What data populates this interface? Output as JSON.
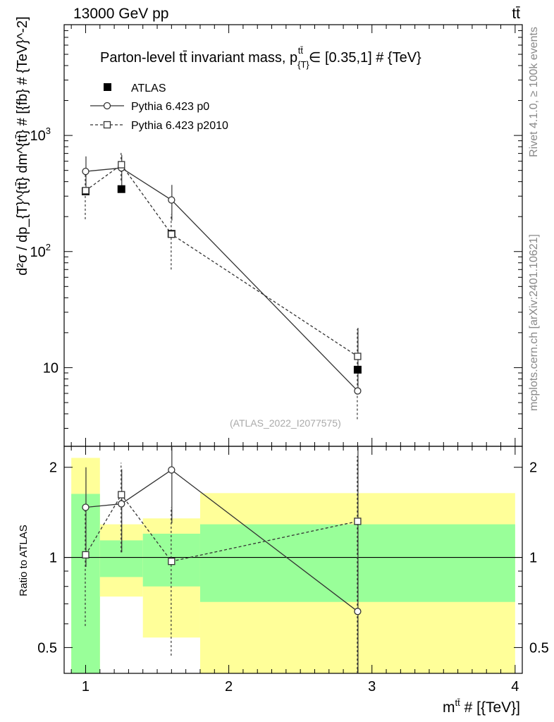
{
  "header": {
    "energy_label": "13000 GeV pp",
    "process_label": "tt̄"
  },
  "side_labels": {
    "rivet": "Rivet 4.1.0, ≥ 100k events",
    "mcplots": "mcplots.cern.ch [arXiv:2401.10621]"
  },
  "colors": {
    "band_stat": "#99ff99",
    "band_total": "#ffff99",
    "data": "#000000",
    "mc": "#333333"
  },
  "chart_data": [
    {
      "type": "scatter",
      "title": "Parton-level tt̄ invariant mass, p_{T}^{tt̄} ∈ [0.35,1] # {TeV}",
      "title_main": "Parton-level tt̄ invariant mass, p",
      "title_sub": "{T}",
      "title_sup": "tt̄",
      "title_tail": "∈ [0.35,1] # {TeV}",
      "ylabel": "d²σ / dp_{T}^{tt̄} dm^{tt̄} # [{fb} # {TeV}^-2]",
      "y_scale": "log",
      "ylim": [
        2.1,
        9000
      ],
      "xlim": [
        0.85,
        4.05
      ],
      "y_ticks": [
        {
          "value": 10,
          "base": "10",
          "exp": ""
        },
        {
          "value": 100,
          "base": "10",
          "exp": "2"
        },
        {
          "value": 1000,
          "base": "10",
          "exp": "3"
        }
      ],
      "analysis_tag": "(ATLAS_2022_I2077575)",
      "legend": [
        {
          "name": "ATLAS",
          "marker": "filled-square",
          "line": "none"
        },
        {
          "name": "Pythia 6.423 p0",
          "marker": "open-circle",
          "line": "solid"
        },
        {
          "name": "Pythia 6.423 p2010",
          "marker": "open-square",
          "line": "dashed"
        }
      ],
      "bins": [
        {
          "lo": 0.9,
          "hi": 1.1
        },
        {
          "lo": 1.1,
          "hi": 1.4
        },
        {
          "lo": 1.4,
          "hi": 1.8
        },
        {
          "lo": 1.8,
          "hi": 4.0
        }
      ],
      "series": [
        {
          "name": "ATLAS",
          "x": [
            1.0,
            1.25,
            1.6,
            2.9
          ],
          "y": [
            330,
            345,
            142,
            9.6
          ]
        },
        {
          "name": "Pythia 6.423 p0",
          "x": [
            1.0,
            1.25,
            1.6,
            2.9
          ],
          "y": [
            490,
            525,
            278,
            6.3
          ],
          "err_lo": [
            340,
            340,
            185,
            6.3
          ],
          "err_hi": [
            660,
            680,
            375,
            22
          ]
        },
        {
          "name": "Pythia 6.423 p2010",
          "x": [
            1.0,
            1.25,
            1.6,
            2.9
          ],
          "y": [
            335,
            560,
            141,
            12.5
          ],
          "err_lo": [
            190,
            410,
            70,
            3.6
          ],
          "err_hi": [
            480,
            720,
            210,
            21.5
          ]
        }
      ]
    },
    {
      "type": "line",
      "ylabel": "Ratio to ATLAS",
      "y_scale": "log",
      "ylim": [
        0.41,
        2.35
      ],
      "xlim": [
        0.85,
        4.05
      ],
      "y_ticks": [
        0.5,
        1,
        2
      ],
      "x_ticks": [
        1,
        2,
        3,
        4
      ],
      "xlabel_main": "m",
      "xlabel_sup": "tt̄",
      "xlabel_tail": " # [{TeV}]",
      "reference": 1,
      "bands": [
        {
          "lo": 0.9,
          "hi": 1.1,
          "stat": [
            0.41,
            1.63
          ],
          "total": [
            0.41,
            2.15
          ]
        },
        {
          "lo": 1.1,
          "hi": 1.4,
          "stat": [
            0.86,
            1.14
          ],
          "total": [
            0.74,
            1.29
          ]
        },
        {
          "lo": 1.4,
          "hi": 1.8,
          "stat": [
            0.8,
            1.2
          ],
          "total": [
            0.54,
            1.35
          ]
        },
        {
          "lo": 1.8,
          "hi": 4.0,
          "stat": [
            0.71,
            1.29
          ],
          "total": [
            0.41,
            1.64
          ]
        }
      ],
      "series": [
        {
          "name": "Pythia 6.423 p0",
          "x": [
            1.0,
            1.25,
            1.6,
            2.9
          ],
          "y": [
            1.47,
            1.51,
            1.96,
            0.66
          ],
          "err_lo": [
            0.93,
            1.04,
            1.3,
            0.36
          ],
          "err_hi": [
            2.0,
            1.97,
            2.35,
            2.35
          ]
        },
        {
          "name": "Pythia 6.423 p2010",
          "x": [
            1.0,
            1.25,
            1.6,
            2.9
          ],
          "y": [
            1.02,
            1.62,
            0.97,
            1.32
          ],
          "err_lo": [
            0.59,
            1.04,
            0.47,
            0.36
          ],
          "err_hi": [
            1.46,
            2.07,
            1.47,
            2.18
          ]
        }
      ]
    }
  ]
}
